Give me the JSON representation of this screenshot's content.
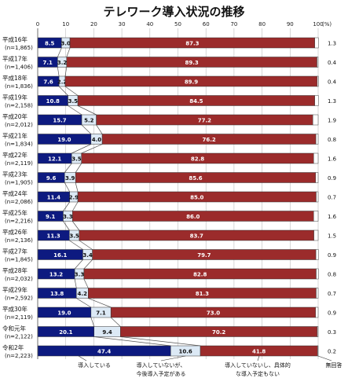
{
  "chart_data": {
    "type": "bar",
    "stacked": true,
    "orientation": "horizontal",
    "title": "テレワーク導入状況の推移",
    "unit": "(%)",
    "xlim": [
      0,
      100
    ],
    "xticks": [
      0,
      10,
      20,
      30,
      40,
      50,
      60,
      70,
      80,
      90,
      100
    ],
    "categories": [
      {
        "year": "平成16年",
        "n": "(n=1,865)"
      },
      {
        "year": "平成17年",
        "n": "(n=1,406)"
      },
      {
        "year": "平成18年",
        "n": "(n=1,836)"
      },
      {
        "year": "平成19年",
        "n": "(n=2,158)"
      },
      {
        "year": "平成20年",
        "n": "(n=2,012)"
      },
      {
        "year": "平成21年",
        "n": "(n=1,834)"
      },
      {
        "year": "平成22年",
        "n": "(n=2,119)"
      },
      {
        "year": "平成23年",
        "n": "(n=1,905)"
      },
      {
        "year": "平成24年",
        "n": "(n=2,086)"
      },
      {
        "year": "平成25年",
        "n": "(n=2,216)"
      },
      {
        "year": "平成26年",
        "n": "(n=2,136)"
      },
      {
        "year": "平成27年",
        "n": "(n=1,845)"
      },
      {
        "year": "平成28年",
        "n": "(n=2,032)"
      },
      {
        "year": "平成29年",
        "n": "(n=2,592)"
      },
      {
        "year": "平成30年",
        "n": "(n=2,119)"
      },
      {
        "year": "令和元年",
        "n": "(n=2,122)"
      },
      {
        "year": "令和2年",
        "n": "(n=2,223)"
      }
    ],
    "series": [
      {
        "name": "導入している",
        "color": "#0d1a80",
        "values": [
          8.5,
          7.1,
          7.6,
          10.8,
          15.7,
          19.0,
          12.1,
          9.6,
          11.4,
          9.1,
          11.3,
          16.1,
          13.2,
          13.8,
          19.0,
          20.1,
          47.4
        ]
      },
      {
        "name": "導入していないが、今後導入予定がある",
        "color": "#dce9f5",
        "values": [
          3.0,
          3.2,
          2.2,
          3.5,
          5.2,
          4.0,
          3.5,
          3.9,
          2.9,
          3.3,
          3.5,
          3.4,
          3.3,
          4.2,
          7.1,
          9.4,
          10.6
        ]
      },
      {
        "name": "導入していないし、具体的な導入予定もない",
        "color": "#9b2b2b",
        "values": [
          87.3,
          89.3,
          89.9,
          84.5,
          77.2,
          76.2,
          82.8,
          85.6,
          85.0,
          86.0,
          83.7,
          79.7,
          82.8,
          81.3,
          73.0,
          70.2,
          41.8
        ]
      },
      {
        "name": "無回答",
        "color": "#ffffff",
        "values": [
          1.3,
          0.4,
          0.4,
          1.3,
          1.9,
          0.8,
          1.6,
          0.9,
          0.7,
          1.6,
          1.5,
          0.9,
          0.8,
          0.7,
          0.9,
          0.3,
          0.2
        ]
      }
    ],
    "grid": true,
    "legend": "bottom"
  }
}
